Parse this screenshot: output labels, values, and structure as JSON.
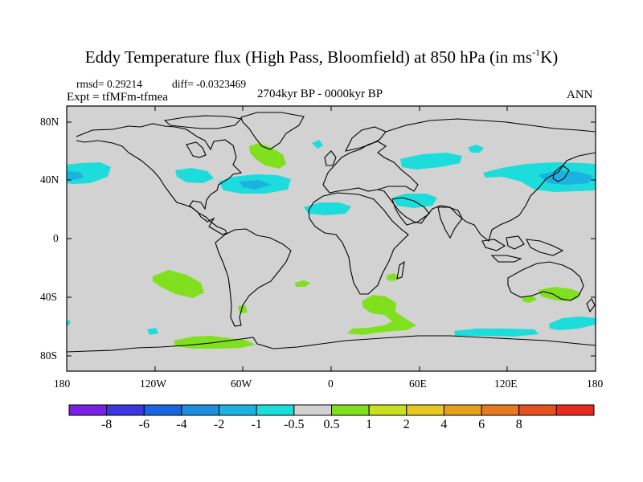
{
  "title": {
    "main": "Eddy Temperature flux (High Pass, Bloomfield) at 850 hPa (in ms",
    "sup": "-1",
    "end": "K)"
  },
  "stats": {
    "rmsd": "rmsd= 0.29214",
    "diff": "diff= -0.0323469"
  },
  "left_label": "Expt = tfMFm-tfmea",
  "center_label": "2704kyr BP - 0000kyr BP",
  "right_label": "ANN",
  "axes": {
    "lon_ticks": [
      "180",
      "120W",
      "60W",
      "0",
      "60E",
      "120E",
      "180"
    ],
    "lat_ticks": [
      "80N",
      "40N",
      "0",
      "40S",
      "80S"
    ]
  },
  "colorbar": {
    "colors": [
      "#7a1fe6",
      "#3b36e0",
      "#1a66e0",
      "#1c8fe0",
      "#1ab3e0",
      "#1cdcdc",
      "#d2d2d2",
      "#80e01e",
      "#c8e01e",
      "#e6c81e",
      "#e6a01e",
      "#e67a1e",
      "#e6501e",
      "#e62a1e"
    ],
    "labels": [
      "-8",
      "-6",
      "-4",
      "-2",
      "-1",
      "-0.5",
      "0.5",
      "1",
      "2",
      "4",
      "6",
      "8"
    ]
  },
  "map_colors": {
    "background": "#d2d2d2",
    "negative": "#1cdcdc",
    "negative_strong": "#1ab3e0",
    "positive": "#80e01e"
  }
}
